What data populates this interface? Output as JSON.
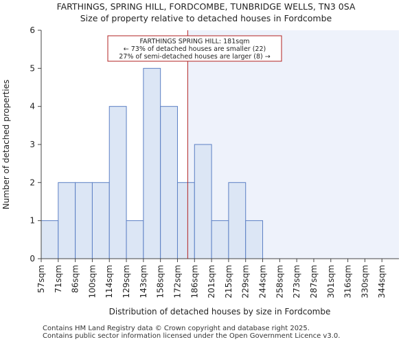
{
  "header": {
    "title": "FARTHINGS, SPRING HILL, FORDCOMBE, TUNBRIDGE WELLS, TN3 0SA",
    "subtitle": "Size of property relative to detached houses in Fordcombe"
  },
  "footer": {
    "line1": "Contains HM Land Registry data © Crown copyright and database right 2025.",
    "line2": "Contains public sector information licensed under the Open Government Licence v3.0."
  },
  "chart_data": {
    "type": "bar",
    "title": "FARTHINGS, SPRING HILL, FORDCOMBE, TUNBRIDGE WELLS, TN3 0SA",
    "subtitle": "Size of property relative to detached houses in Fordcombe",
    "xlabel": "Distribution of detached houses by size in Fordcombe",
    "ylabel": "Number of detached properties",
    "categories": [
      "57sqm",
      "71sqm",
      "86sqm",
      "100sqm",
      "114sqm",
      "129sqm",
      "143sqm",
      "158sqm",
      "172sqm",
      "186sqm",
      "201sqm",
      "215sqm",
      "229sqm",
      "244sqm",
      "258sqm",
      "273sqm",
      "287sqm",
      "301sqm",
      "316sqm",
      "330sqm",
      "344sqm"
    ],
    "values": [
      1,
      2,
      2,
      2,
      4,
      1,
      5,
      4,
      2,
      3,
      1,
      2,
      1,
      0,
      0,
      0,
      0,
      0,
      0,
      0,
      0
    ],
    "ylim": [
      0,
      6
    ],
    "yticks": [
      0,
      1,
      2,
      3,
      4,
      5,
      6
    ],
    "marker": {
      "value_sqm": 181,
      "bin_position": 8.6,
      "label_lines": [
        "FARTHINGS SPRING HILL: 181sqm",
        "← 73% of detached houses are smaller (22)",
        "27% of semi-detached houses are larger (8) →"
      ]
    },
    "colors": {
      "bar_fill": "#dce6f5",
      "bar_stroke": "#5b7fc4",
      "highlight_region": "#eef2fb",
      "marker_line": "#b22222",
      "axis": "#444444"
    }
  }
}
